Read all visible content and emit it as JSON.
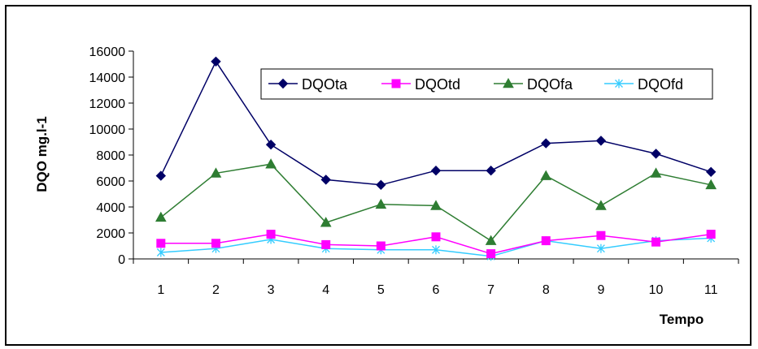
{
  "chart_data": {
    "type": "line",
    "title": "",
    "xlabel": "Tempo",
    "ylabel": "DQO mg.l-1",
    "categories": [
      "1",
      "2",
      "3",
      "4",
      "5",
      "6",
      "7",
      "8",
      "9",
      "10",
      "11"
    ],
    "ylim": [
      0,
      16000
    ],
    "yticks": [
      "0",
      "2000",
      "4000",
      "6000",
      "8000",
      "10000",
      "12000",
      "14000",
      "16000"
    ],
    "grid": false,
    "legend_position": "top-right",
    "series": [
      {
        "name": "DQOta",
        "color": "#000066",
        "marker": "diamond",
        "values": [
          6400,
          15200,
          8800,
          6100,
          5700,
          6800,
          6800,
          8900,
          9100,
          8100,
          6700
        ]
      },
      {
        "name": "DQOtd",
        "color": "#ff00ff",
        "marker": "square",
        "values": [
          1200,
          1200,
          1900,
          1100,
          1000,
          1700,
          400,
          1400,
          1800,
          1300,
          1900
        ]
      },
      {
        "name": "DQOfa",
        "color": "#2e7d32",
        "marker": "triangle",
        "values": [
          3200,
          6600,
          7300,
          2800,
          4200,
          4100,
          1400,
          6400,
          4100,
          6600,
          5700
        ]
      },
      {
        "name": "DQOfd",
        "color": "#33ccff",
        "marker": "x-star",
        "values": [
          500,
          800,
          1500,
          800,
          700,
          700,
          200,
          1400,
          800,
          1400,
          1600
        ]
      }
    ]
  }
}
